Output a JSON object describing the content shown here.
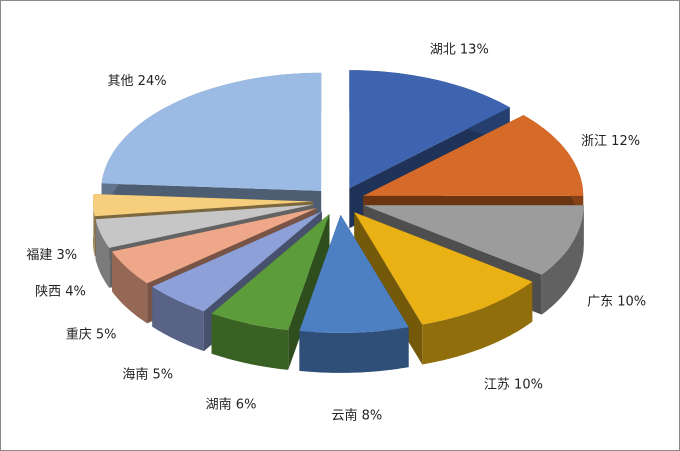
{
  "chart_data": {
    "type": "pie",
    "style": "3d-exploded",
    "title": "",
    "start": "top",
    "direction": "clockwise",
    "slices": [
      {
        "label": "湖北 13%",
        "name": "湖北",
        "value": 13,
        "color": "#3e64b0"
      },
      {
        "label": "浙江 12%",
        "name": "浙江",
        "value": 12,
        "color": "#d66a28"
      },
      {
        "label": "广东 10%",
        "name": "广东",
        "value": 10,
        "color": "#9c9c9c"
      },
      {
        "label": "江苏 10%",
        "name": "江苏",
        "value": 10,
        "color": "#e9b114"
      },
      {
        "label": "云南 8%",
        "name": "云南",
        "value": 8,
        "color": "#4c80c2"
      },
      {
        "label": "湖南 6%",
        "name": "湖南",
        "value": 6,
        "color": "#5c9c3a"
      },
      {
        "label": "海南 5%",
        "name": "海南",
        "value": 5,
        "color": "#8ea0d8"
      },
      {
        "label": "重庆 5%",
        "name": "重庆",
        "value": 5,
        "color": "#eea789"
      },
      {
        "label": "陕西 4%",
        "name": "陕西",
        "value": 4,
        "color": "#c6c6c6"
      },
      {
        "label": "福建 3%",
        "name": "福建",
        "value": 3,
        "color": "#f7cf7c"
      },
      {
        "label": "其他 24%",
        "name": "其他",
        "value": 24,
        "color": "#9bbbe4"
      }
    ]
  }
}
